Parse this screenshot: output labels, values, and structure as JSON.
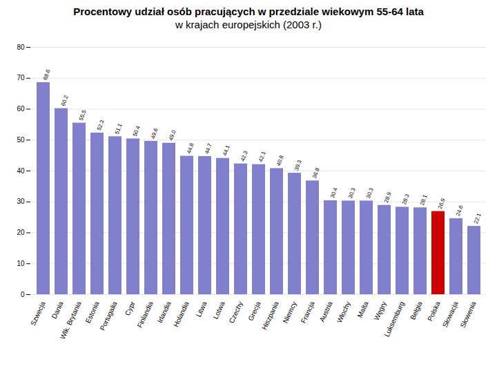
{
  "chart_data": {
    "type": "bar",
    "title": "Procentowy udział osób pracujących w przedziale wiekowym 55-64 lata",
    "subtitle": "w krajach europejskich (2003 r.)",
    "categories": [
      "Szwecja",
      "Dania",
      "Wlk. Brytania",
      "Estonia",
      "Portugalia",
      "Cypr",
      "Finlandia",
      "Irlandia",
      "Holandia",
      "Litwa",
      "Lotwa",
      "Czechy",
      "Grecja",
      "Hiszpania",
      "Niemcy",
      "Francja",
      "Austria",
      "Włochy",
      "Malta",
      "Węgry",
      "Luksemburg",
      "Belgia",
      "Polska",
      "Słowacja",
      "Słowenia"
    ],
    "values": [
      68.6,
      60.2,
      55.5,
      52.3,
      51.1,
      50.4,
      49.6,
      49.0,
      44.8,
      44.7,
      44.1,
      42.3,
      42.1,
      40.8,
      39.3,
      36.8,
      30.4,
      30.3,
      30.3,
      28.9,
      28.3,
      28.1,
      26.9,
      24.6,
      22.1
    ],
    "value_labels": [
      "68.6",
      "60.2",
      "55.5",
      "52.3",
      "51.1",
      "50.4",
      "49.6",
      "49.0",
      "44.8",
      "44.7",
      "44.1",
      "42.3",
      "42.1",
      "40.8",
      "39.3",
      "36.8",
      "30.4",
      "30.3",
      "30.3",
      "28.9",
      "28.3",
      "28.1",
      "26.9",
      "24.6",
      "22.1"
    ],
    "colors": [
      "#8080cc",
      "#8080cc",
      "#8080cc",
      "#8080cc",
      "#8080cc",
      "#8080cc",
      "#8080cc",
      "#8080cc",
      "#8080cc",
      "#8080cc",
      "#8080cc",
      "#8080cc",
      "#8080cc",
      "#8080cc",
      "#8080cc",
      "#8080cc",
      "#8080cc",
      "#8080cc",
      "#8080cc",
      "#8080cc",
      "#8080cc",
      "#8080cc",
      "#cc0000",
      "#8080cc",
      "#8080cc"
    ],
    "ylim": [
      0,
      80
    ],
    "yticks": [
      0,
      10,
      20,
      30,
      40,
      50,
      60,
      70,
      80
    ],
    "grid": true,
    "data_labels": true
  }
}
